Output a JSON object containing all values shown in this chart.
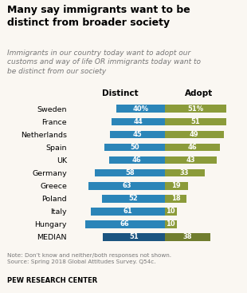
{
  "title": "Many say immigrants want to be\ndistinct from broader society",
  "subtitle": "Immigrants in our country today want to adopt our\ncustoms and way of life OR immigrants today want to\nbe distinct from our society",
  "categories": [
    "Sweden",
    "France",
    "Netherlands",
    "Spain",
    "UK",
    "Germany",
    "Greece",
    "Poland",
    "Italy",
    "Hungary",
    "MEDIAN"
  ],
  "distinct": [
    40,
    44,
    45,
    50,
    46,
    58,
    63,
    52,
    61,
    66,
    51
  ],
  "adopt": [
    51,
    51,
    49,
    46,
    43,
    33,
    19,
    18,
    10,
    10,
    38
  ],
  "distinct_color": "#2B85B8",
  "adopt_color": "#8B9B3A",
  "median_distinct_color": "#1B5480",
  "median_adopt_color": "#707D2E",
  "note": "Note: Don’t know and neither/both responses not shown.\nSource: Spring 2018 Global Attitudes Survey. Q54c.",
  "source": "PEW RESEARCH CENTER",
  "col_header_distinct": "Distinct",
  "col_header_adopt": "Adopt",
  "background_color": "#faf7f2"
}
